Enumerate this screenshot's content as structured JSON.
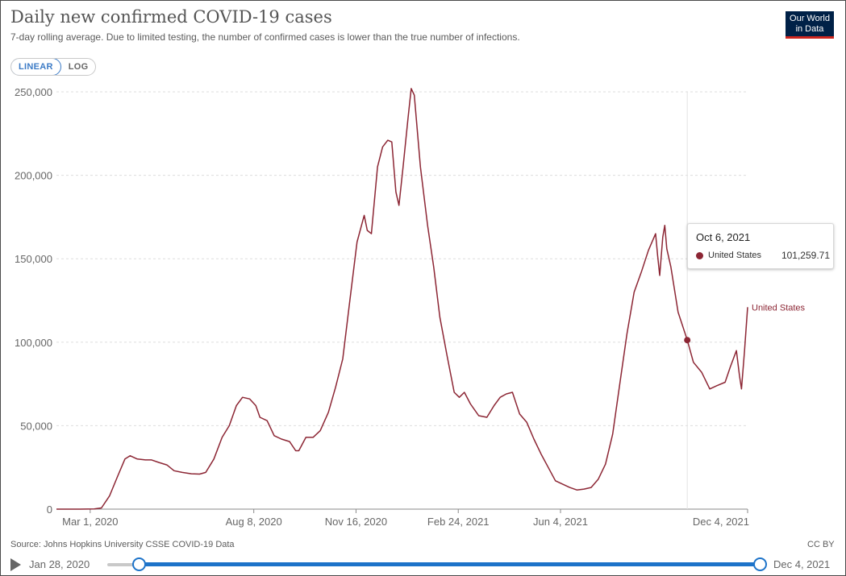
{
  "header": {
    "title": "Daily new confirmed COVID-19 cases",
    "subtitle": "7-day rolling average. Due to limited testing, the number of confirmed cases is lower than the true number of infections.",
    "logo_line1": "Our World",
    "logo_line2": "in Data"
  },
  "scale_toggle": {
    "linear_label": "LINEAR",
    "log_label": "LOG",
    "selected": "LINEAR"
  },
  "chart_data": {
    "type": "line",
    "title": "Daily new confirmed COVID-19 cases",
    "subtitle": "7-day rolling average. Due to limited testing, the number of confirmed cases is lower than the true number of infections.",
    "x_start": "2020-01-28",
    "x_end": "2021-12-04",
    "ylim": [
      0,
      250000
    ],
    "yticks": [
      0,
      50000,
      100000,
      150000,
      200000,
      250000
    ],
    "ytick_labels": [
      "0",
      "50,000",
      "100,000",
      "150,000",
      "200,000",
      "250,000"
    ],
    "xticks": [
      "2020-03-01",
      "2020-08-08",
      "2020-11-16",
      "2021-02-24",
      "2021-06-04",
      "2021-12-04"
    ],
    "xtick_labels": [
      "Mar 1, 2020",
      "Aug 8, 2020",
      "Nov 16, 2020",
      "Feb 24, 2021",
      "Jun 4, 2021",
      "Dec 4, 2021"
    ],
    "grid": "horizontal dashed",
    "line_color": "#8c2634",
    "series": [
      {
        "name": "United States",
        "color": "#8c2634",
        "points": [
          [
            "2020-01-28",
            0
          ],
          [
            "2020-02-20",
            0
          ],
          [
            "2020-03-05",
            100
          ],
          [
            "2020-03-12",
            700
          ],
          [
            "2020-03-20",
            8000
          ],
          [
            "2020-03-28",
            20000
          ],
          [
            "2020-04-04",
            30000
          ],
          [
            "2020-04-09",
            32000
          ],
          [
            "2020-04-16",
            30000
          ],
          [
            "2020-04-24",
            29500
          ],
          [
            "2020-04-30",
            29500
          ],
          [
            "2020-05-07",
            28000
          ],
          [
            "2020-05-15",
            26500
          ],
          [
            "2020-05-22",
            23000
          ],
          [
            "2020-05-30",
            22000
          ],
          [
            "2020-06-08",
            21200
          ],
          [
            "2020-06-16",
            21000
          ],
          [
            "2020-06-22",
            22000
          ],
          [
            "2020-06-30",
            30000
          ],
          [
            "2020-07-08",
            43000
          ],
          [
            "2020-07-15",
            50000
          ],
          [
            "2020-07-22",
            62000
          ],
          [
            "2020-07-28",
            67000
          ],
          [
            "2020-08-04",
            66000
          ],
          [
            "2020-08-10",
            62000
          ],
          [
            "2020-08-14",
            55000
          ],
          [
            "2020-08-21",
            53000
          ],
          [
            "2020-08-28",
            44000
          ],
          [
            "2020-09-04",
            42000
          ],
          [
            "2020-09-12",
            40500
          ],
          [
            "2020-09-18",
            35000
          ],
          [
            "2020-09-21",
            35000
          ],
          [
            "2020-09-28",
            43000
          ],
          [
            "2020-10-05",
            43000
          ],
          [
            "2020-10-12",
            47000
          ],
          [
            "2020-10-20",
            58000
          ],
          [
            "2020-10-27",
            73000
          ],
          [
            "2020-11-03",
            90000
          ],
          [
            "2020-11-10",
            125000
          ],
          [
            "2020-11-17",
            160000
          ],
          [
            "2020-11-24",
            176000
          ],
          [
            "2020-11-27",
            167000
          ],
          [
            "2020-12-01",
            165000
          ],
          [
            "2020-12-07",
            205000
          ],
          [
            "2020-12-12",
            217000
          ],
          [
            "2020-12-17",
            221000
          ],
          [
            "2020-12-21",
            220000
          ],
          [
            "2020-12-25",
            190000
          ],
          [
            "2020-12-28",
            182000
          ],
          [
            "2021-01-01",
            205000
          ],
          [
            "2021-01-06",
            235000
          ],
          [
            "2021-01-09",
            252000
          ],
          [
            "2021-01-12",
            248000
          ],
          [
            "2021-01-18",
            205000
          ],
          [
            "2021-01-25",
            170000
          ],
          [
            "2021-01-31",
            145000
          ],
          [
            "2021-02-06",
            115000
          ],
          [
            "2021-02-13",
            92000
          ],
          [
            "2021-02-20",
            70000
          ],
          [
            "2021-02-25",
            67000
          ],
          [
            "2021-03-02",
            70000
          ],
          [
            "2021-03-08",
            63000
          ],
          [
            "2021-03-16",
            56000
          ],
          [
            "2021-03-24",
            55000
          ],
          [
            "2021-03-31",
            62000
          ],
          [
            "2021-04-06",
            67000
          ],
          [
            "2021-04-12",
            69000
          ],
          [
            "2021-04-18",
            70000
          ],
          [
            "2021-04-25",
            57000
          ],
          [
            "2021-05-02",
            52000
          ],
          [
            "2021-05-09",
            42000
          ],
          [
            "2021-05-16",
            33000
          ],
          [
            "2021-05-23",
            25000
          ],
          [
            "2021-05-30",
            17000
          ],
          [
            "2021-06-06",
            15000
          ],
          [
            "2021-06-13",
            13000
          ],
          [
            "2021-06-20",
            11500
          ],
          [
            "2021-06-27",
            12000
          ],
          [
            "2021-07-04",
            13000
          ],
          [
            "2021-07-11",
            18000
          ],
          [
            "2021-07-18",
            27000
          ],
          [
            "2021-07-25",
            45000
          ],
          [
            "2021-08-01",
            75000
          ],
          [
            "2021-08-08",
            105000
          ],
          [
            "2021-08-15",
            130000
          ],
          [
            "2021-08-22",
            142000
          ],
          [
            "2021-08-29",
            155000
          ],
          [
            "2021-09-05",
            165000
          ],
          [
            "2021-09-07",
            152000
          ],
          [
            "2021-09-09",
            140000
          ],
          [
            "2021-09-12",
            163000
          ],
          [
            "2021-09-14",
            170000
          ],
          [
            "2021-09-16",
            156000
          ],
          [
            "2021-09-20",
            145000
          ],
          [
            "2021-09-27",
            118000
          ],
          [
            "2021-10-06",
            101260
          ],
          [
            "2021-10-12",
            88000
          ],
          [
            "2021-10-20",
            82000
          ],
          [
            "2021-10-28",
            72000
          ],
          [
            "2021-11-04",
            74000
          ],
          [
            "2021-11-12",
            76000
          ],
          [
            "2021-11-17",
            85000
          ],
          [
            "2021-11-23",
            95000
          ],
          [
            "2021-11-26",
            80000
          ],
          [
            "2021-11-28",
            72000
          ],
          [
            "2021-12-01",
            95000
          ],
          [
            "2021-12-04",
            121000
          ]
        ]
      }
    ],
    "series_label": "United States",
    "hover": {
      "date": "2021-10-06",
      "value": 101259.71
    }
  },
  "tooltip": {
    "date": "Oct 6, 2021",
    "entity": "United States",
    "value": "101,259.71"
  },
  "footer": {
    "source": "Source: Johns Hopkins University CSSE COVID-19 Data",
    "license": "CC BY"
  },
  "timeline": {
    "start_label": "Jan 28, 2020",
    "end_label": "Dec 4, 2021"
  }
}
